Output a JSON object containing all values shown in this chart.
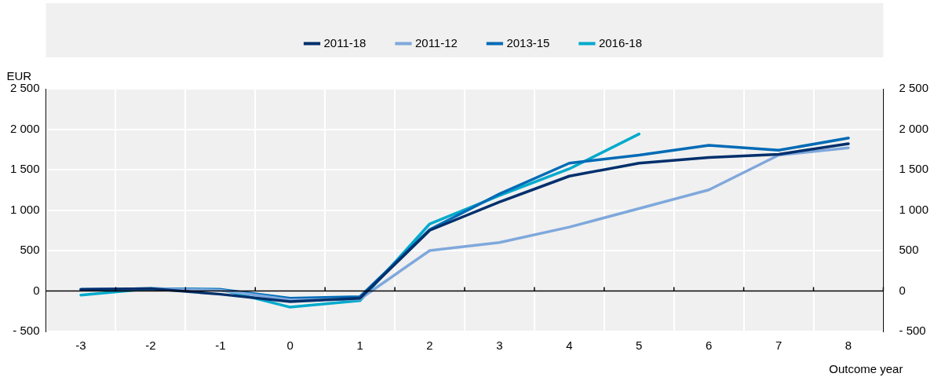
{
  "chart_data": {
    "type": "line",
    "categories": [
      "-3",
      "-2",
      "-1",
      "0",
      "1",
      "2",
      "3",
      "4",
      "5",
      "6",
      "7",
      "8"
    ],
    "series": [
      {
        "name": "2011-18",
        "color": "#002f6c",
        "values": [
          20,
          30,
          -40,
          -130,
          -90,
          750,
          1100,
          1420,
          1580,
          1650,
          1690,
          1820
        ]
      },
      {
        "name": "2011-12",
        "color": "#7fa8dc",
        "values": [
          20,
          30,
          10,
          -110,
          -100,
          500,
          600,
          790,
          1020,
          1250,
          1680,
          1770
        ]
      },
      {
        "name": "2013-15",
        "color": "#006bb6",
        "values": [
          20,
          30,
          20,
          -90,
          -70,
          760,
          1200,
          1580,
          1680,
          1800,
          1740,
          1890
        ]
      },
      {
        "name": "2016-18",
        "color": "#00aacc",
        "values": [
          -50,
          30,
          20,
          -200,
          -120,
          830,
          1180,
          1510,
          1940,
          null,
          null,
          null
        ]
      }
    ],
    "ylabel": "EUR",
    "xlabel": "Outcome year",
    "ylim": [
      -500,
      2500
    ],
    "yticks": [
      {
        "value": -500,
        "label": "- 500"
      },
      0,
      500,
      {
        "value": 1000,
        "label": "1 000"
      },
      {
        "value": 1500,
        "label": "1 500"
      },
      {
        "value": 2000,
        "label": "2 000"
      },
      {
        "value": 2500,
        "label": "2 500"
      }
    ],
    "y2lim": [
      -500,
      2500
    ],
    "y2ticks": [
      {
        "value": -500,
        "label": "- 500"
      },
      0,
      500,
      {
        "value": 1000,
        "label": "1 000"
      },
      {
        "value": 1500,
        "label": "1 500"
      },
      {
        "value": 2000,
        "label": "2 000"
      },
      {
        "value": 2500,
        "label": "2 500"
      }
    ],
    "grid": true,
    "legend": "top",
    "marker": "none",
    "line_style": "solid"
  }
}
